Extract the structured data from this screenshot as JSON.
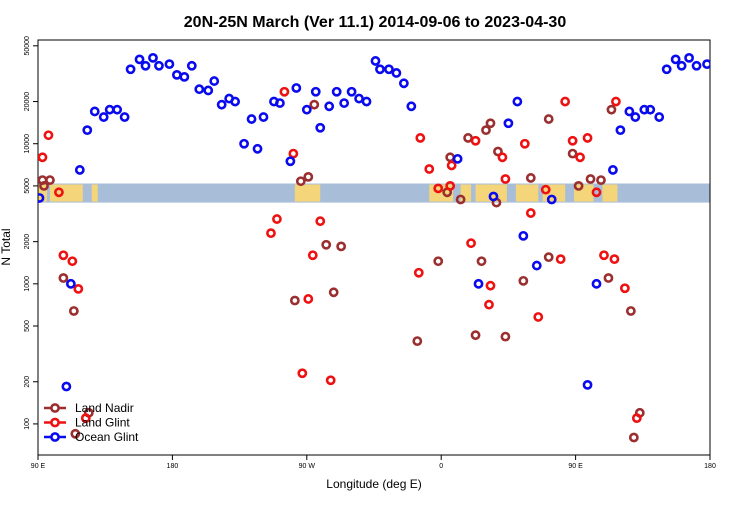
{
  "chart_data": {
    "type": "scatter",
    "title": "20N-25N March (Ver 11.1)   2014-09-06 to 2023-04-30",
    "xlabel": "Longitude (deg E)",
    "ylabel": "N Total",
    "x_scale": "linear",
    "y_scale": "log",
    "xlim": [
      90,
      540
    ],
    "ylim": [
      60,
      55000
    ],
    "x_ticks": [
      {
        "value": 90,
        "label": "90 E"
      },
      {
        "value": 180,
        "label": "180"
      },
      {
        "value": 270,
        "label": "90 W"
      },
      {
        "value": 360,
        "label": "0"
      },
      {
        "value": 450,
        "label": "90 E"
      },
      {
        "value": 540,
        "label": "180"
      }
    ],
    "y_ticks": [
      {
        "value": 100,
        "label": "100"
      },
      {
        "value": 200,
        "label": "200"
      },
      {
        "value": 500,
        "label": "500"
      },
      {
        "value": 1000,
        "label": "1000"
      },
      {
        "value": 2000,
        "label": "2000"
      },
      {
        "value": 5000,
        "label": "5000"
      },
      {
        "value": 10000,
        "label": "10000"
      },
      {
        "value": 20000,
        "label": "20000"
      },
      {
        "value": 50000,
        "label": "50000"
      }
    ],
    "map_strip": {
      "y_range": [
        3800,
        5200
      ],
      "ocean_color": "#a8bed8",
      "land_color": "#f5d57a"
    },
    "legend_position": "bottom-left",
    "series": [
      {
        "name": "Land Nadir",
        "color": "#9b2f2f",
        "points": [
          [
            93,
            5500
          ],
          [
            94,
            5000
          ],
          [
            98,
            5500
          ],
          [
            107,
            1100
          ],
          [
            114,
            640
          ],
          [
            115,
            85
          ],
          [
            124,
            120
          ],
          [
            262,
            760
          ],
          [
            266,
            5400
          ],
          [
            271,
            5800
          ],
          [
            275,
            19000
          ],
          [
            283,
            1900
          ],
          [
            288,
            870
          ],
          [
            293,
            1850
          ],
          [
            344,
            390
          ],
          [
            358,
            1450
          ],
          [
            364,
            4500
          ],
          [
            366,
            8000
          ],
          [
            373,
            4000
          ],
          [
            378,
            11000
          ],
          [
            383,
            430
          ],
          [
            387,
            1450
          ],
          [
            390,
            12500
          ],
          [
            393,
            14000
          ],
          [
            397,
            3800
          ],
          [
            398,
            8800
          ],
          [
            403,
            420
          ],
          [
            415,
            1050
          ],
          [
            420,
            5700
          ],
          [
            432,
            1550
          ],
          [
            432,
            15000
          ],
          [
            448,
            8500
          ],
          [
            452,
            5000
          ],
          [
            460,
            5600
          ],
          [
            467,
            5500
          ],
          [
            472,
            1100
          ],
          [
            474,
            17500
          ],
          [
            487,
            640
          ],
          [
            489,
            80
          ],
          [
            493,
            120
          ]
        ]
      },
      {
        "name": "Land Glint",
        "color": "#ee1111",
        "points": [
          [
            93,
            8000
          ],
          [
            97,
            11500
          ],
          [
            104,
            4500
          ],
          [
            107,
            1600
          ],
          [
            113,
            1450
          ],
          [
            117,
            920
          ],
          [
            122,
            110
          ],
          [
            246,
            2300
          ],
          [
            250,
            2900
          ],
          [
            255,
            23500
          ],
          [
            261,
            8500
          ],
          [
            267,
            230
          ],
          [
            271,
            780
          ],
          [
            274,
            1600
          ],
          [
            279,
            2800
          ],
          [
            286,
            205
          ],
          [
            345,
            1200
          ],
          [
            346,
            11000
          ],
          [
            352,
            6600
          ],
          [
            358,
            4800
          ],
          [
            366,
            5000
          ],
          [
            367,
            7000
          ],
          [
            380,
            1950
          ],
          [
            383,
            10500
          ],
          [
            392,
            710
          ],
          [
            393,
            970
          ],
          [
            401,
            8000
          ],
          [
            403,
            5600
          ],
          [
            416,
            10000
          ],
          [
            420,
            3200
          ],
          [
            425,
            580
          ],
          [
            430,
            4700
          ],
          [
            440,
            1500
          ],
          [
            443,
            20000
          ],
          [
            448,
            10500
          ],
          [
            453,
            8000
          ],
          [
            458,
            11000
          ],
          [
            464,
            4500
          ],
          [
            469,
            1600
          ],
          [
            476,
            1500
          ],
          [
            477,
            20000
          ],
          [
            483,
            930
          ],
          [
            491,
            110
          ]
        ]
      },
      {
        "name": "Ocean Glint",
        "color": "#0a0aee",
        "points": [
          [
            91,
            4100
          ],
          [
            109,
            185
          ],
          [
            112,
            1000
          ],
          [
            118,
            6500
          ],
          [
            123,
            12500
          ],
          [
            128,
            17000
          ],
          [
            134,
            15500
          ],
          [
            138,
            17500
          ],
          [
            143,
            17500
          ],
          [
            148,
            15500
          ],
          [
            152,
            34000
          ],
          [
            158,
            40000
          ],
          [
            162,
            36000
          ],
          [
            167,
            41000
          ],
          [
            171,
            36000
          ],
          [
            178,
            37000
          ],
          [
            183,
            31000
          ],
          [
            188,
            30000
          ],
          [
            193,
            36000
          ],
          [
            198,
            24500
          ],
          [
            204,
            24000
          ],
          [
            208,
            28000
          ],
          [
            213,
            19000
          ],
          [
            218,
            21000
          ],
          [
            222,
            20000
          ],
          [
            228,
            10000
          ],
          [
            233,
            15000
          ],
          [
            237,
            9200
          ],
          [
            241,
            15500
          ],
          [
            248,
            20000
          ],
          [
            252,
            19500
          ],
          [
            259,
            7500
          ],
          [
            263,
            25000
          ],
          [
            270,
            17500
          ],
          [
            276,
            23500
          ],
          [
            279,
            13000
          ],
          [
            285,
            18500
          ],
          [
            290,
            23500
          ],
          [
            295,
            19500
          ],
          [
            300,
            23500
          ],
          [
            305,
            21000
          ],
          [
            310,
            20000
          ],
          [
            316,
            39000
          ],
          [
            319,
            34000
          ],
          [
            325,
            34000
          ],
          [
            330,
            32000
          ],
          [
            335,
            27000
          ],
          [
            340,
            18500
          ],
          [
            371,
            7800
          ],
          [
            385,
            1000
          ],
          [
            395,
            4200
          ],
          [
            405,
            14000
          ],
          [
            411,
            20000
          ],
          [
            415,
            2200
          ],
          [
            424,
            1350
          ],
          [
            434,
            4000
          ],
          [
            458,
            190
          ],
          [
            464,
            1000
          ],
          [
            475,
            6500
          ],
          [
            480,
            12500
          ],
          [
            486,
            17000
          ],
          [
            490,
            15500
          ],
          [
            496,
            17500
          ],
          [
            500,
            17500
          ],
          [
            506,
            15500
          ],
          [
            511,
            34000
          ],
          [
            517,
            40000
          ],
          [
            521,
            36000
          ],
          [
            526,
            41000
          ],
          [
            531,
            36000
          ],
          [
            538,
            37000
          ]
        ]
      }
    ]
  }
}
